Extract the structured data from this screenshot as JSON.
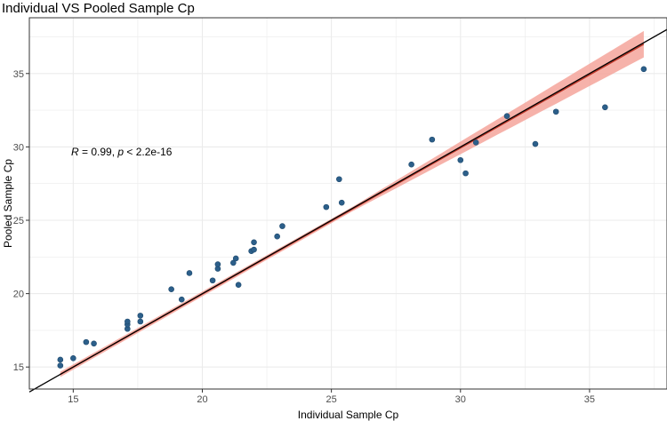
{
  "chart_data": {
    "type": "scatter",
    "title": "Individual VS Pooled Sample Cp",
    "xlabel": "Individual Sample Cp",
    "ylabel": "Pooled Sample Cp",
    "xlim": [
      13.3,
      38.0
    ],
    "ylim": [
      13.5,
      38.8
    ],
    "x_ticks": [
      15,
      20,
      25,
      30,
      35
    ],
    "y_ticks": [
      15,
      20,
      25,
      30,
      35
    ],
    "x_tick_labels": [
      "15",
      "20",
      "25",
      "30",
      "35"
    ],
    "y_tick_labels": [
      "15",
      "20",
      "25",
      "30",
      "35"
    ],
    "grid": true,
    "annotation": {
      "r_symbol": "R",
      "r_text": " = 0.99, ",
      "p_symbol": "p",
      "p_text": " < 2.2e-16"
    },
    "identity_line": {
      "x": [
        13.3,
        38.0
      ],
      "y": [
        13.3,
        38.0
      ]
    },
    "regression": {
      "x": [
        14.5,
        37.1
      ],
      "y": [
        14.5,
        37.0
      ],
      "ci_start": 0.15,
      "ci_end": 0.9
    },
    "points": [
      {
        "x": 14.5,
        "y": 15.5
      },
      {
        "x": 14.5,
        "y": 15.1
      },
      {
        "x": 15.0,
        "y": 15.6
      },
      {
        "x": 15.5,
        "y": 16.7
      },
      {
        "x": 15.8,
        "y": 16.6
      },
      {
        "x": 17.1,
        "y": 17.6
      },
      {
        "x": 17.1,
        "y": 17.9
      },
      {
        "x": 17.1,
        "y": 18.1
      },
      {
        "x": 17.6,
        "y": 18.1
      },
      {
        "x": 17.6,
        "y": 18.5
      },
      {
        "x": 18.8,
        "y": 20.3
      },
      {
        "x": 19.2,
        "y": 19.6
      },
      {
        "x": 19.5,
        "y": 21.4
      },
      {
        "x": 20.4,
        "y": 20.9
      },
      {
        "x": 20.6,
        "y": 21.7
      },
      {
        "x": 20.6,
        "y": 22.0
      },
      {
        "x": 21.2,
        "y": 22.1
      },
      {
        "x": 21.3,
        "y": 22.4
      },
      {
        "x": 21.4,
        "y": 20.6
      },
      {
        "x": 21.9,
        "y": 22.9
      },
      {
        "x": 22.0,
        "y": 23.0
      },
      {
        "x": 22.0,
        "y": 23.5
      },
      {
        "x": 22.9,
        "y": 23.9
      },
      {
        "x": 23.1,
        "y": 24.6
      },
      {
        "x": 24.8,
        "y": 25.9
      },
      {
        "x": 25.3,
        "y": 27.8
      },
      {
        "x": 25.4,
        "y": 26.2
      },
      {
        "x": 28.1,
        "y": 28.8
      },
      {
        "x": 28.9,
        "y": 30.5
      },
      {
        "x": 30.0,
        "y": 29.1
      },
      {
        "x": 30.2,
        "y": 28.2
      },
      {
        "x": 30.6,
        "y": 30.3
      },
      {
        "x": 31.8,
        "y": 32.1
      },
      {
        "x": 32.9,
        "y": 30.2
      },
      {
        "x": 33.7,
        "y": 32.4
      },
      {
        "x": 35.6,
        "y": 32.7
      },
      {
        "x": 37.1,
        "y": 35.3
      }
    ]
  },
  "colors": {
    "point": "#2c5f8a",
    "point_stroke": "#1f4a6e",
    "ribbon": "#f4a49b",
    "regression": "#c0392b",
    "identity": "#000000",
    "grid": "#ebebeb",
    "panel_border": "#333333",
    "tick": "#333333"
  }
}
